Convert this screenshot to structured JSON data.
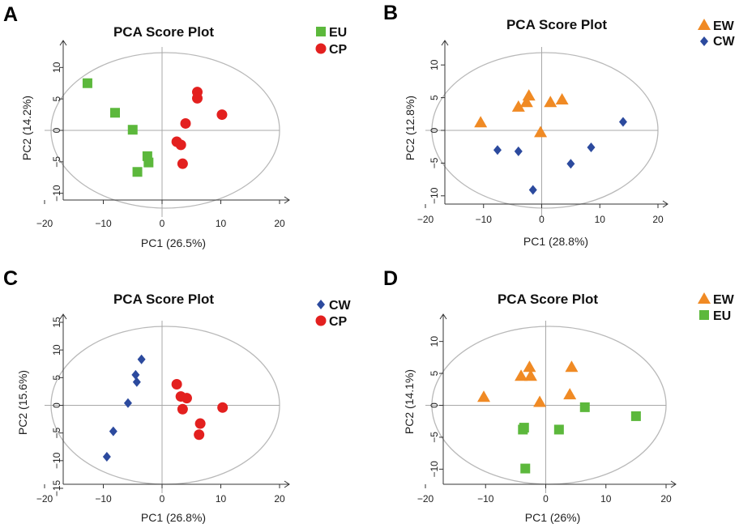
{
  "colors": {
    "green": "#5cb83c",
    "red": "#e3201f",
    "orange": "#f08a24",
    "blue": "#2c4a9e"
  },
  "chart_data": [
    {
      "panel": "A",
      "type": "scatter",
      "title": "PCA Score Plot",
      "xlabel": "PC1 (26.5%)",
      "ylabel": "PC2 (14.2%)",
      "xlim": [
        -20,
        20
      ],
      "ylim": [
        -13,
        13
      ],
      "xticks": [
        -20,
        -10,
        0,
        10,
        20
      ],
      "yticks": [
        -10,
        -5,
        0,
        5,
        10
      ],
      "ellipse": true,
      "series": [
        {
          "name": "EU",
          "marker": "square",
          "color": "#5cb83c",
          "x": [
            -12.7,
            -8,
            -5,
            -2.5,
            -2.3,
            -4.2
          ],
          "y": [
            7.5,
            2.8,
            0.1,
            -4.1,
            -5.1,
            -6.6
          ]
        },
        {
          "name": "CP",
          "marker": "circle",
          "color": "#e3201f",
          "x": [
            6,
            6,
            10.2,
            4,
            2.5,
            3.2,
            3.5
          ],
          "y": [
            6.1,
            5.1,
            2.5,
            1.1,
            -1.8,
            -2.3,
            -5.3
          ]
        }
      ]
    },
    {
      "panel": "B",
      "type": "scatter",
      "title": "PCA Score Plot",
      "xlabel": "PC1 (28.8%)",
      "ylabel": "PC2 (12.8%)",
      "xlim": [
        -20,
        20
      ],
      "ylim": [
        -12.5,
        12.5
      ],
      "xticks": [
        -20,
        -10,
        0,
        10,
        20
      ],
      "yticks": [
        -10,
        -5,
        0,
        5,
        10
      ],
      "ellipse": true,
      "series": [
        {
          "name": "EW",
          "marker": "triangle",
          "color": "#f08a24",
          "x": [
            -10.5,
            -4,
            -2.6,
            -2.2,
            1.5,
            3.5,
            -0.2
          ],
          "y": [
            1.2,
            3.6,
            4.3,
            5.3,
            4.3,
            4.7,
            -0.3
          ]
        },
        {
          "name": "CW",
          "marker": "diamond",
          "color": "#2c4a9e",
          "x": [
            14,
            8.5,
            -7.6,
            -4,
            5,
            -1.5
          ],
          "y": [
            1.3,
            -2.6,
            -3,
            -3.2,
            -5.1,
            -9.1
          ]
        }
      ]
    },
    {
      "panel": "C",
      "type": "scatter",
      "title": "PCA Score Plot",
      "xlabel": "PC1 (26.8%)",
      "ylabel": "PC2 (15.6%)",
      "xlim": [
        -20,
        20
      ],
      "ylim": [
        -15,
        15
      ],
      "xticks": [
        -20,
        -10,
        0,
        10,
        20
      ],
      "yticks": [
        -15,
        -10,
        -5,
        0,
        5,
        10,
        15
      ],
      "ellipse": true,
      "series": [
        {
          "name": "CW",
          "marker": "diamond",
          "color": "#2c4a9e",
          "x": [
            -3.5,
            -4.5,
            -4.3,
            -5.8,
            -8.3,
            -9.4
          ],
          "y": [
            8.3,
            5.5,
            4.2,
            0.4,
            -4.7,
            -9.3
          ]
        },
        {
          "name": "CP",
          "marker": "circle",
          "color": "#e3201f",
          "x": [
            2.5,
            3.2,
            4.2,
            3.5,
            10.3,
            6.5,
            6.3
          ],
          "y": [
            3.8,
            1.6,
            1.3,
            -0.7,
            -0.4,
            -3.3,
            -5.3
          ]
        }
      ]
    },
    {
      "panel": "D",
      "type": "scatter",
      "title": "PCA Score Plot",
      "xlabel": "PC1 (26%)",
      "ylabel": "PC2 (14.1%)",
      "xlim": [
        -20,
        20
      ],
      "ylim": [
        -13,
        13
      ],
      "xticks": [
        -20,
        -10,
        0,
        10,
        20
      ],
      "yticks": [
        -10,
        -5,
        0,
        5,
        10
      ],
      "ellipse": true,
      "series": [
        {
          "name": "EW",
          "marker": "triangle",
          "color": "#f08a24",
          "x": [
            -10.3,
            -4.1,
            -2.7,
            -2.5,
            -1,
            4,
            4.3
          ],
          "y": [
            1.3,
            4.6,
            6,
            4.6,
            0.5,
            1.7,
            6
          ]
        },
        {
          "name": "EU",
          "marker": "square",
          "color": "#5cb83c",
          "x": [
            6.5,
            15,
            -3.6,
            -3.8,
            2.2,
            -3.4
          ],
          "y": [
            -0.3,
            -1.7,
            -3.5,
            -3.8,
            -3.8,
            -9.9
          ]
        }
      ]
    }
  ]
}
